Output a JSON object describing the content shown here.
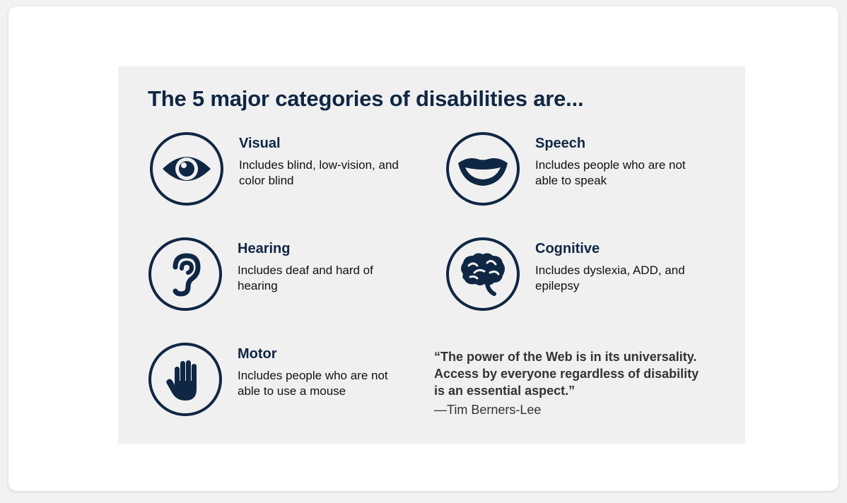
{
  "title": "The 5 major categories of disabilities are...",
  "colors": {
    "primary": "#0f2744",
    "panel": "#f0f0f0",
    "text": "#111111"
  },
  "categories": [
    {
      "name": "Visual",
      "description": "Includes blind, low-vision, and color blind",
      "icon": "eye-icon"
    },
    {
      "name": "Speech",
      "description": "Includes people who are not able to speak",
      "icon": "lips-icon"
    },
    {
      "name": "Hearing",
      "description": "Includes deaf and hard of hearing",
      "icon": "ear-icon"
    },
    {
      "name": "Cognitive",
      "description": "Includes dyslexia, ADD, and epilepsy",
      "icon": "brain-icon"
    },
    {
      "name": "Motor",
      "description": "Includes people who are not able to use a mouse",
      "icon": "hand-icon"
    }
  ],
  "quote": {
    "text": "“The power of the Web is in its universality.\n Access by everyone regardless of disability\n is an essential aspect.”",
    "author": "—Tim Berners-Lee"
  }
}
